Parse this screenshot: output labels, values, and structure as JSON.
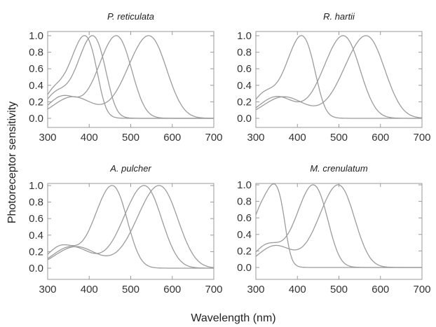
{
  "figure": {
    "ylabel": "Photoreceptor sensitivity",
    "xlabel": "Wavelength (nm)"
  },
  "chart_data": [
    {
      "type": "line",
      "title": "P. reticulata",
      "xlim": [
        300,
        700
      ],
      "ylim": [
        -0.05,
        1.1
      ],
      "x_ticks": [
        300,
        400,
        500,
        600,
        700
      ],
      "y_ticks": [
        0.0,
        0.2,
        0.4,
        0.6,
        0.8,
        1.0
      ],
      "grid": false,
      "series": [
        {
          "peak_nm": 389
        },
        {
          "peak_nm": 408
        },
        {
          "peak_nm": 465
        },
        {
          "peak_nm": 543
        }
      ]
    },
    {
      "type": "line",
      "title": "R. hartii",
      "xlim": [
        300,
        700
      ],
      "ylim": [
        -0.05,
        1.1
      ],
      "x_ticks": [
        300,
        400,
        500,
        600,
        700
      ],
      "y_ticks": [
        0.0,
        0.2,
        0.4,
        0.6,
        0.8,
        1.0
      ],
      "grid": false,
      "series": [
        {
          "peak_nm": 410
        },
        {
          "peak_nm": 510
        },
        {
          "peak_nm": 565
        }
      ]
    },
    {
      "type": "line",
      "title": "A. pulcher",
      "xlim": [
        300,
        700
      ],
      "ylim": [
        -0.05,
        1.1
      ],
      "x_ticks": [
        300,
        400,
        500,
        600,
        700
      ],
      "y_ticks": [
        0.0,
        0.2,
        0.4,
        0.6,
        0.8,
        1.0
      ],
      "grid": false,
      "series": [
        {
          "peak_nm": 455
        },
        {
          "peak_nm": 532
        },
        {
          "peak_nm": 568
        }
      ]
    },
    {
      "type": "line",
      "title": "M. crenulatum",
      "xlim": [
        300,
        700
      ],
      "ylim": [
        -0.05,
        1.1
      ],
      "x_ticks": [
        300,
        400,
        500,
        600,
        700
      ],
      "y_ticks": [
        0.0,
        0.2,
        0.4,
        0.6,
        0.8,
        1.0
      ],
      "grid": false,
      "series": [
        {
          "peak_nm": 345
        },
        {
          "peak_nm": 438
        },
        {
          "peak_nm": 498
        }
      ]
    }
  ]
}
